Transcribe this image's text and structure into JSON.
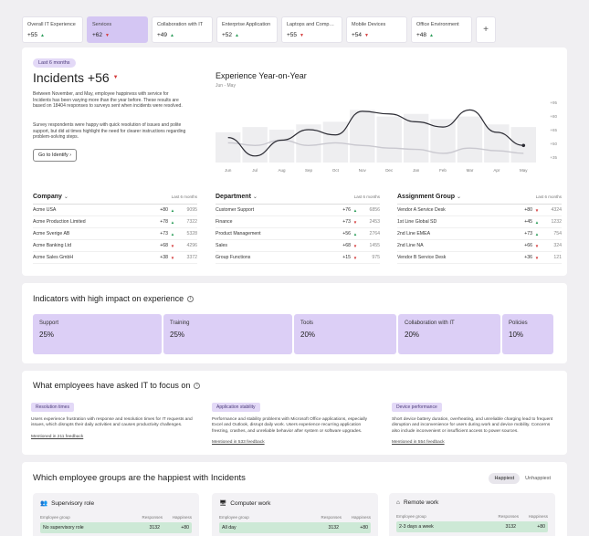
{
  "tabs": [
    {
      "name": "Overall IT Experience",
      "value": "+55",
      "trend": "up",
      "active": false
    },
    {
      "name": "Services",
      "value": "+62",
      "trend": "down",
      "active": true
    },
    {
      "name": "Collaboration with IT",
      "value": "+49",
      "trend": "up",
      "active": false
    },
    {
      "name": "Enterprise Application",
      "value": "+52",
      "trend": "up",
      "active": false
    },
    {
      "name": "Laptops and Comput...",
      "value": "+55",
      "trend": "down",
      "active": false
    },
    {
      "name": "Mobile Devices",
      "value": "+54",
      "trend": "down",
      "active": false
    },
    {
      "name": "Office Environment",
      "value": "+48",
      "trend": "up",
      "active": false
    }
  ],
  "add_tab": "+",
  "main": {
    "period": "Last 6 months",
    "title": "Incidents +56",
    "paragraph1": "Between November, and May, employee happiness with service for Incidents has been varying more than the year before. These results are based on 18404 responses to surveys sent when incidents were resolved.",
    "paragraph2": "Survey respondents were happy with quick resolution of issues and polite support, but did at times highlight the need for clearer instructions regarding problem-solving steps.",
    "button": "Go to Identify",
    "chart_title": "Experience Year-on-Year",
    "chart_sub": "Jun - May"
  },
  "chart_data": {
    "type": "line",
    "title": "Experience Year-on-Year",
    "subtitle": "Jun - May",
    "categories": [
      "Jun",
      "Jul",
      "Aug",
      "Sep",
      "Oct",
      "Nov",
      "Dec",
      "Jan",
      "Feb",
      "Mar",
      "Apr",
      "May"
    ],
    "ylim": [
      45,
      95
    ],
    "y_ticks": [
      "+95",
      "+80",
      "+65",
      "+50",
      "+35"
    ],
    "series": [
      {
        "values": [
          64,
          50,
          62,
          70,
          66,
          84,
          82,
          76,
          72,
          85,
          68,
          58
        ]
      },
      {
        "values": [
          60,
          58,
          62,
          58,
          60,
          58,
          56,
          55,
          52,
          56,
          54,
          52
        ]
      }
    ],
    "bars": [
      68,
      72,
      70,
      74,
      76,
      85,
      80,
      82,
      78,
      80,
      74,
      72
    ],
    "colors": {
      "line1": "#2b2b33",
      "line2": "#c9c8cf",
      "bars": "#eeeef0"
    }
  },
  "sections": [
    {
      "title": "Company",
      "period": "Last 6 months",
      "rows": [
        {
          "name": "Acme USA",
          "value": "+80",
          "trend": "up",
          "count": "9095"
        },
        {
          "name": "Acme Production Limited",
          "value": "+78",
          "trend": "up",
          "count": "7322"
        },
        {
          "name": "Acme Sverige AB",
          "value": "+73",
          "trend": "up",
          "count": "5328"
        },
        {
          "name": "Acme Banking Ltd",
          "value": "+68",
          "trend": "down",
          "count": "4296"
        },
        {
          "name": "Acme Sales GmbH",
          "value": "+38",
          "trend": "down",
          "count": "3372"
        }
      ]
    },
    {
      "title": "Department",
      "period": "Last 6 months",
      "rows": [
        {
          "name": "Customer Support",
          "value": "+76",
          "trend": "up",
          "count": "6856"
        },
        {
          "name": "Finance",
          "value": "+73",
          "trend": "down",
          "count": "2453"
        },
        {
          "name": "Product Management",
          "value": "+56",
          "trend": "up",
          "count": "2764"
        },
        {
          "name": "Sales",
          "value": "+68",
          "trend": "down",
          "count": "1455"
        },
        {
          "name": "Group Functions",
          "value": "+15",
          "trend": "down",
          "count": "975"
        }
      ]
    },
    {
      "title": "Assignment Group",
      "period": "Last 6 months",
      "rows": [
        {
          "name": "Vendor A Service Desk",
          "value": "+80",
          "trend": "down",
          "count": "4324"
        },
        {
          "name": "1st Line Global SD",
          "value": "+45",
          "trend": "up",
          "count": "1232"
        },
        {
          "name": "2nd Line EMEA",
          "value": "+73",
          "trend": "up",
          "count": "754"
        },
        {
          "name": "2nd Line NA",
          "value": "+66",
          "trend": "down",
          "count": "324"
        },
        {
          "name": "Vendor B Service Desk",
          "value": "+36",
          "trend": "down",
          "count": "121"
        }
      ]
    }
  ],
  "indicators": {
    "title": "Indicators with high impact on experience",
    "items": [
      {
        "label": "Support",
        "pct": "25%",
        "share": 25
      },
      {
        "label": "Training",
        "pct": "25%",
        "share": 25
      },
      {
        "label": "Tools",
        "pct": "20%",
        "share": 20
      },
      {
        "label": "Collaboration with IT",
        "pct": "20%",
        "share": 20
      },
      {
        "label": "Policies",
        "pct": "10%",
        "share": 10
      }
    ]
  },
  "focus": {
    "title": "What employees have asked IT to focus on",
    "items": [
      {
        "tag": "Resolution times",
        "desc": "Users experience frustration with response and resolution times for IT requests and issues, which disrupts their daily activities and causes productivity challenges.",
        "link": "Mentioned in 211 feedback"
      },
      {
        "tag": "Application stability",
        "desc": "Performance and stability problems with Microsoft Office applications, especially Excel and Outlook, disrupt daily work. Users experience recurring application freezing, crashes, and unreliable behavior after system or software upgrades.",
        "link": "Mentioned in 533 feedback"
      },
      {
        "tag": "Device performance",
        "desc": "Short device battery duration, overheating, and unreliable charging lead to frequent disruption and inconvenience for users during work and device mobility. Concerns also include inconvenient or insufficient access to power sources.",
        "link": "Mentioned in 554 feedback"
      }
    ]
  },
  "groups": {
    "title": "Which employee groups are the happiest with Incidents",
    "toggle": [
      "Happiest",
      "Unhappiest"
    ],
    "col_group": "Employee group",
    "col_resp": "Responses",
    "col_happy": "Happiness",
    "cards": [
      {
        "title": "Supervisory role",
        "icon": "people-icon",
        "row": {
          "name": "No supervisory role",
          "responses": "3132",
          "happiness": "+80"
        }
      },
      {
        "title": "Computer work",
        "icon": "computer-icon",
        "row": {
          "name": "All day",
          "responses": "3132",
          "happiness": "+80"
        }
      },
      {
        "title": "Remote work",
        "icon": "house-icon",
        "row": {
          "name": "2-3 days a week",
          "responses": "3132",
          "happiness": "+80"
        }
      }
    ]
  }
}
